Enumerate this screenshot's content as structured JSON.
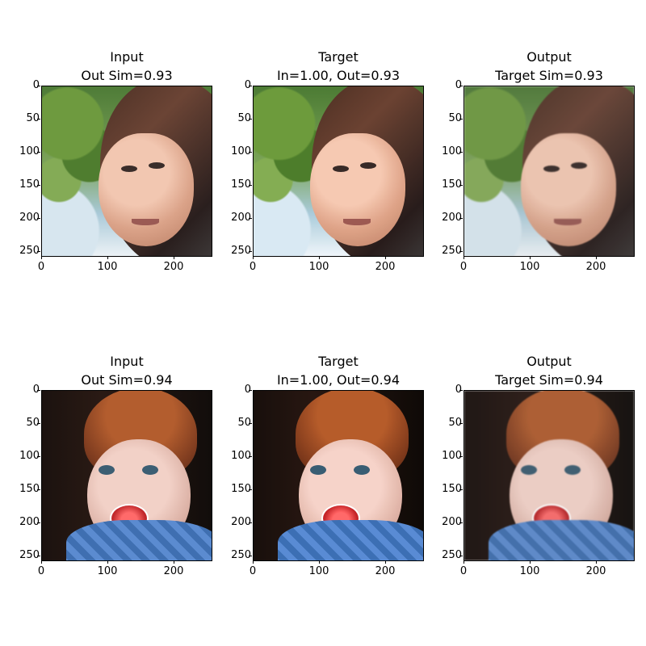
{
  "panels": [
    {
      "title": [
        "Input",
        "Out Sim=0.93"
      ]
    },
    {
      "title": [
        "Target",
        "In=1.00, Out=0.93"
      ]
    },
    {
      "title": [
        "Output",
        "Target Sim=0.93"
      ]
    },
    {
      "title": [
        "Input",
        "Out Sim=0.94"
      ]
    },
    {
      "title": [
        "Target",
        "In=1.00, Out=0.94"
      ]
    },
    {
      "title": [
        "Output",
        "Target Sim=0.94"
      ]
    }
  ],
  "axes": {
    "y_ticks": [
      "0",
      "50",
      "100",
      "150",
      "200",
      "250"
    ],
    "x_ticks": [
      "0",
      "100",
      "200"
    ]
  }
}
